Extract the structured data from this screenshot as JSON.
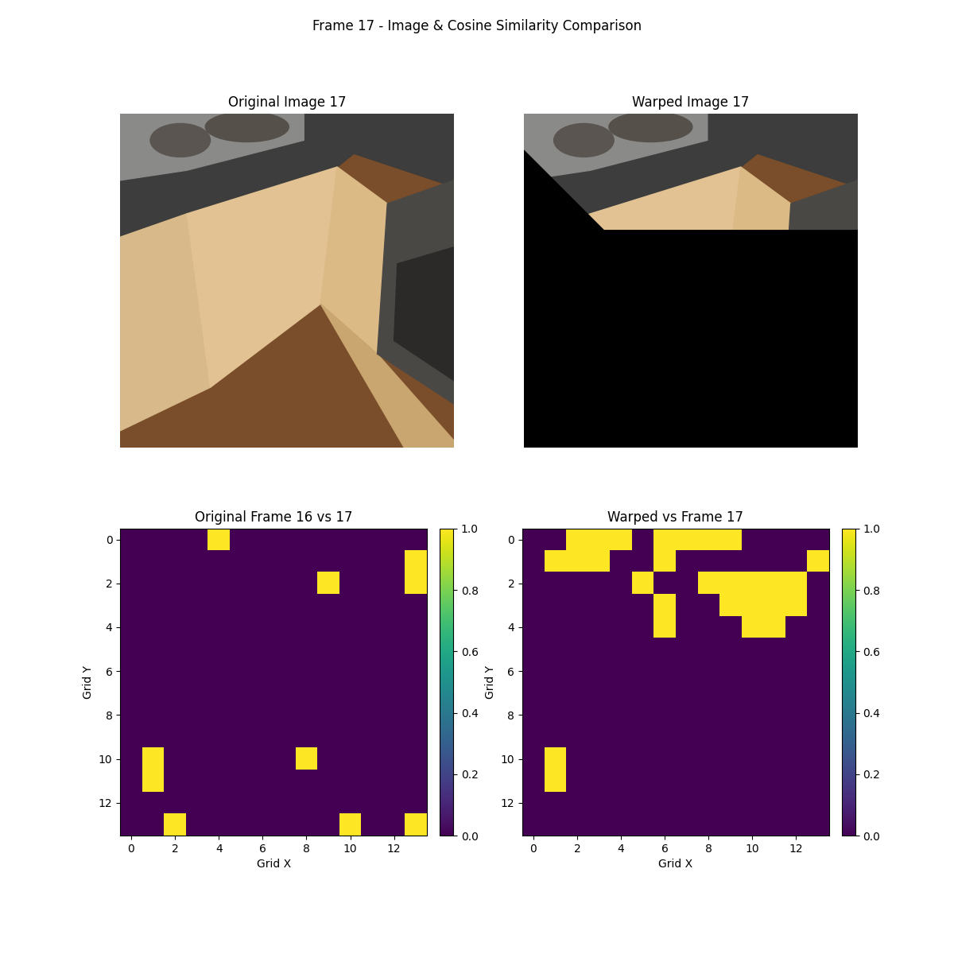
{
  "title": "Frame 17 - Image & Cosine Similarity Comparison",
  "images": [
    {
      "title": "Original Image 17"
    },
    {
      "title": "Warped Image 17"
    }
  ],
  "chart_data": [
    {
      "type": "heatmap",
      "title": "Original Frame 16 vs 17",
      "x_label": "Grid X",
      "y_label": "Grid Y",
      "xlim": [
        -0.5,
        13.5
      ],
      "ylim": [
        13.5,
        -0.5
      ],
      "xticks": [
        0,
        2,
        4,
        6,
        8,
        10,
        12
      ],
      "yticks": [
        0,
        2,
        4,
        6,
        8,
        10,
        12
      ],
      "cells": [
        [
          0,
          0,
          0,
          0,
          1,
          0,
          0,
          0,
          0,
          0,
          0,
          0,
          0,
          0
        ],
        [
          0,
          0,
          0,
          0,
          0,
          0,
          0,
          0,
          0,
          0,
          0,
          0,
          0,
          1
        ],
        [
          0,
          0,
          0,
          0,
          0,
          0,
          0,
          0,
          0,
          1,
          0,
          0,
          0,
          1
        ],
        [
          0,
          0,
          0,
          0,
          0,
          0,
          0,
          0,
          0,
          0,
          0,
          0,
          0,
          0
        ],
        [
          0,
          0,
          0,
          0,
          0,
          0,
          0,
          0,
          0,
          0,
          0,
          0,
          0,
          0
        ],
        [
          0,
          0,
          0,
          0,
          0,
          0,
          0,
          0,
          0,
          0,
          0,
          0,
          0,
          0
        ],
        [
          0,
          0,
          0,
          0,
          0,
          0,
          0,
          0,
          0,
          0,
          0,
          0,
          0,
          0
        ],
        [
          0,
          0,
          0,
          0,
          0,
          0,
          0,
          0,
          0,
          0,
          0,
          0,
          0,
          0
        ],
        [
          0,
          0,
          0,
          0,
          0,
          0,
          0,
          0,
          0,
          0,
          0,
          0,
          0,
          0
        ],
        [
          0,
          0,
          0,
          0,
          0,
          0,
          0,
          0,
          0,
          0,
          0,
          0,
          0,
          0
        ],
        [
          0,
          1,
          0,
          0,
          0,
          0,
          0,
          0,
          1,
          0,
          0,
          0,
          0,
          0
        ],
        [
          0,
          1,
          0,
          0,
          0,
          0,
          0,
          0,
          0,
          0,
          0,
          0,
          0,
          0
        ],
        [
          0,
          0,
          0,
          0,
          0,
          0,
          0,
          0,
          0,
          0,
          0,
          0,
          0,
          0
        ],
        [
          0,
          0,
          1,
          0,
          0,
          0,
          0,
          0,
          0,
          0,
          1,
          0,
          0,
          1
        ]
      ],
      "color_range": [
        0,
        1
      ],
      "color_ticks": [
        {
          "value": 0,
          "label": "0.0"
        },
        {
          "value": 0.2,
          "label": "0.2"
        },
        {
          "value": 0.4,
          "label": "0.4"
        },
        {
          "value": 0.6,
          "label": "0.6"
        },
        {
          "value": 0.8,
          "label": "0.8"
        },
        {
          "value": 1,
          "label": "1.0"
        }
      ]
    },
    {
      "type": "heatmap",
      "title": "Warped vs Frame 17",
      "x_label": "Grid X",
      "y_label": "Grid Y",
      "xlim": [
        -0.5,
        13.5
      ],
      "ylim": [
        13.5,
        -0.5
      ],
      "xticks": [
        0,
        2,
        4,
        6,
        8,
        10,
        12
      ],
      "yticks": [
        0,
        2,
        4,
        6,
        8,
        10,
        12
      ],
      "cells": [
        [
          0,
          0,
          1,
          1,
          1,
          0,
          1,
          1,
          1,
          1,
          0,
          0,
          0,
          0
        ],
        [
          0,
          1,
          1,
          1,
          0,
          0,
          1,
          0,
          0,
          0,
          0,
          0,
          0,
          1
        ],
        [
          0,
          0,
          0,
          0,
          0,
          1,
          0,
          0,
          1,
          1,
          1,
          1,
          1,
          0
        ],
        [
          0,
          0,
          0,
          0,
          0,
          0,
          1,
          0,
          0,
          1,
          1,
          1,
          1,
          0
        ],
        [
          0,
          0,
          0,
          0,
          0,
          0,
          1,
          0,
          0,
          0,
          1,
          1,
          0,
          0
        ],
        [
          0,
          0,
          0,
          0,
          0,
          0,
          0,
          0,
          0,
          0,
          0,
          0,
          0,
          0
        ],
        [
          0,
          0,
          0,
          0,
          0,
          0,
          0,
          0,
          0,
          0,
          0,
          0,
          0,
          0
        ],
        [
          0,
          0,
          0,
          0,
          0,
          0,
          0,
          0,
          0,
          0,
          0,
          0,
          0,
          0
        ],
        [
          0,
          0,
          0,
          0,
          0,
          0,
          0,
          0,
          0,
          0,
          0,
          0,
          0,
          0
        ],
        [
          0,
          0,
          0,
          0,
          0,
          0,
          0,
          0,
          0,
          0,
          0,
          0,
          0,
          0
        ],
        [
          0,
          1,
          0,
          0,
          0,
          0,
          0,
          0,
          0,
          0,
          0,
          0,
          0,
          0
        ],
        [
          0,
          1,
          0,
          0,
          0,
          0,
          0,
          0,
          0,
          0,
          0,
          0,
          0,
          0
        ],
        [
          0,
          0,
          0,
          0,
          0,
          0,
          0,
          0,
          0,
          0,
          0,
          0,
          0,
          0
        ],
        [
          0,
          0,
          0,
          0,
          0,
          0,
          0,
          0,
          0,
          0,
          0,
          0,
          0,
          0
        ]
      ],
      "color_range": [
        0,
        1
      ],
      "color_ticks": [
        {
          "value": 0,
          "label": "0.0"
        },
        {
          "value": 0.2,
          "label": "0.2"
        },
        {
          "value": 0.4,
          "label": "0.4"
        },
        {
          "value": 0.6,
          "label": "0.6"
        },
        {
          "value": 0.8,
          "label": "0.8"
        },
        {
          "value": 1,
          "label": "1.0"
        }
      ]
    }
  ]
}
